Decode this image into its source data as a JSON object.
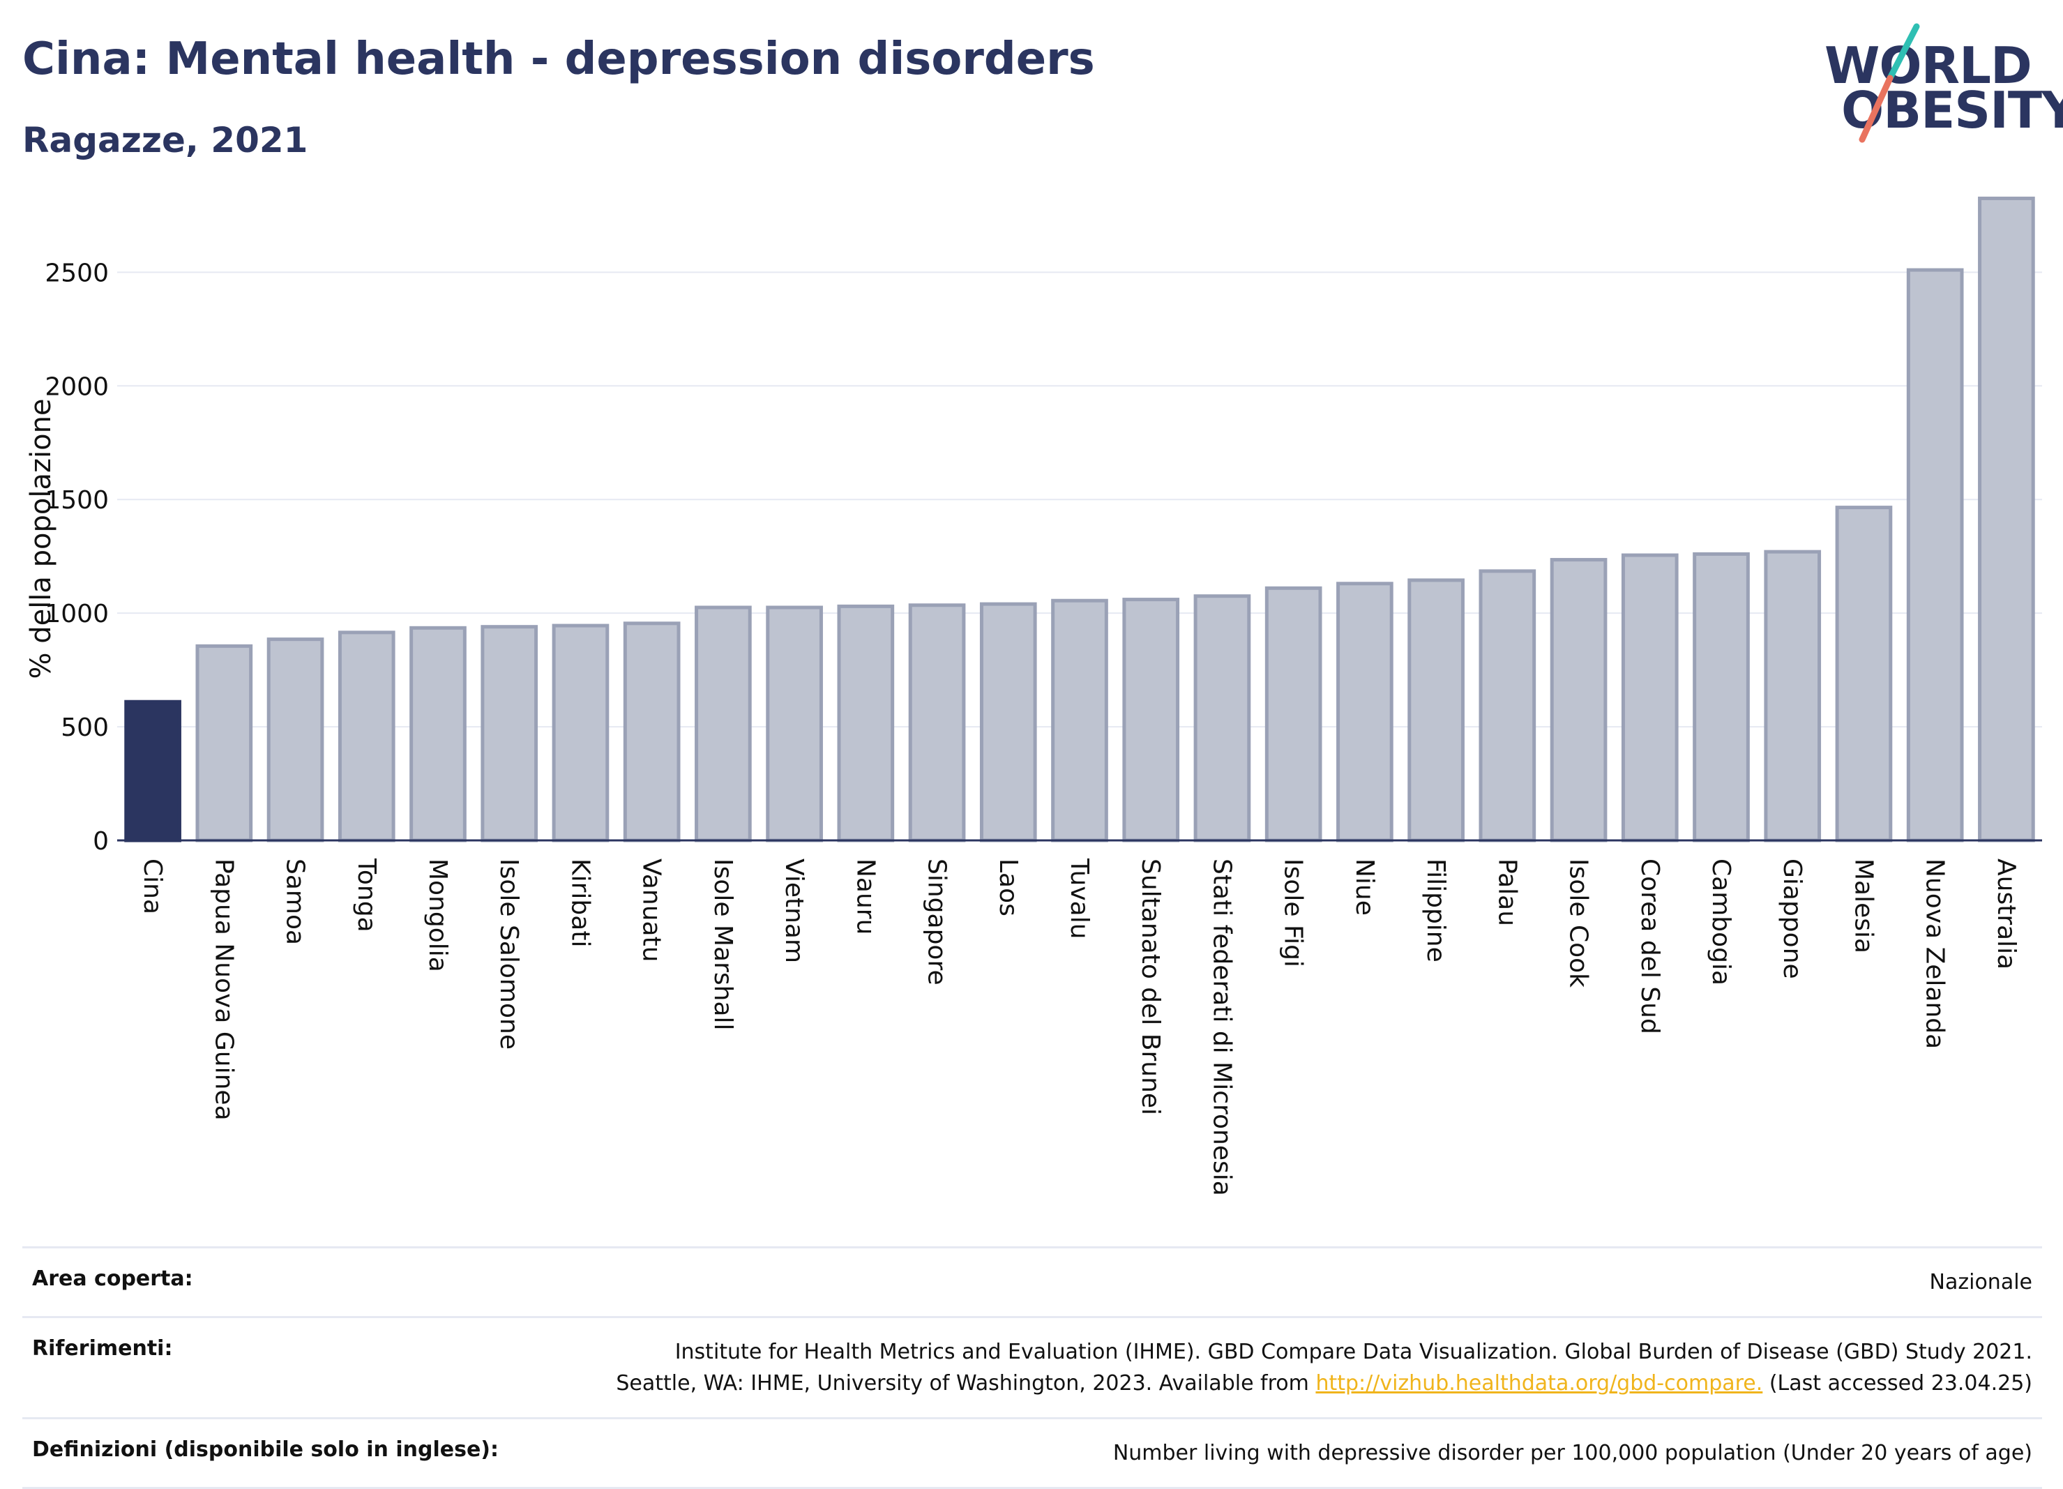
{
  "title": "Cina: Mental health - depression disorders",
  "subtitle": "Ragazze, 2021",
  "logo": {
    "line1": "WORLD",
    "line2": "OBESITY"
  },
  "colors": {
    "highlight_bar": "#2b3560",
    "bar_fill": "#bec3d0",
    "bar_stroke": "#9aa1b6",
    "grid": "#e6e9f2",
    "axis": "#2b3560",
    "link": "#f0b41c",
    "logo_slash_teal": "#2fbfb3",
    "logo_slash_coral": "#e9735f"
  },
  "chart_data": {
    "type": "bar",
    "ylabel": "% della popolazione",
    "xlabel": "",
    "ylim": [
      0,
      2900
    ],
    "yticks": [
      0,
      500,
      1000,
      1500,
      2000,
      2500
    ],
    "grid": true,
    "highlight": "Cina",
    "categories": [
      "Cina",
      "Papua Nuova Guinea",
      "Samoa",
      "Tonga",
      "Mongolia",
      "Isole Salomone",
      "Kiribati",
      "Vanuatu",
      "Isole Marshall",
      "Vietnam",
      "Nauru",
      "Singapore",
      "Laos",
      "Tuvalu",
      "Sultanato del Brunei",
      "Stati federati di Micronesia",
      "Isole Figi",
      "Niue",
      "Filippine",
      "Palau",
      "Isole Cook",
      "Corea del Sud",
      "Cambogia",
      "Giappone",
      "Malesia",
      "Nuova Zelanda",
      "Australia"
    ],
    "values": [
      610,
      855,
      885,
      915,
      935,
      940,
      945,
      955,
      1025,
      1025,
      1030,
      1035,
      1040,
      1055,
      1060,
      1075,
      1110,
      1130,
      1145,
      1185,
      1235,
      1255,
      1260,
      1270,
      1465,
      2510,
      2825
    ]
  },
  "footer": {
    "area_label": "Area coperta:",
    "area_value": "Nazionale",
    "ref_label": "Riferimenti:",
    "ref_line1": "Institute for Health Metrics and Evaluation (IHME). GBD Compare Data Visualization. Global Burden of Disease (GBD) Study 2021.",
    "ref_line2_pre": "Seattle, WA: IHME, University of Washington, 2023. Available from",
    "ref_link": "http://vizhub.healthdata.org/gbd-compare.",
    "ref_line2_post": "(Last accessed 23.04.25)",
    "def_label": "Definizioni (disponibile solo in inglese):",
    "def_value": "Number living with depressive disorder per 100,000 population (Under 20 years of age)"
  }
}
